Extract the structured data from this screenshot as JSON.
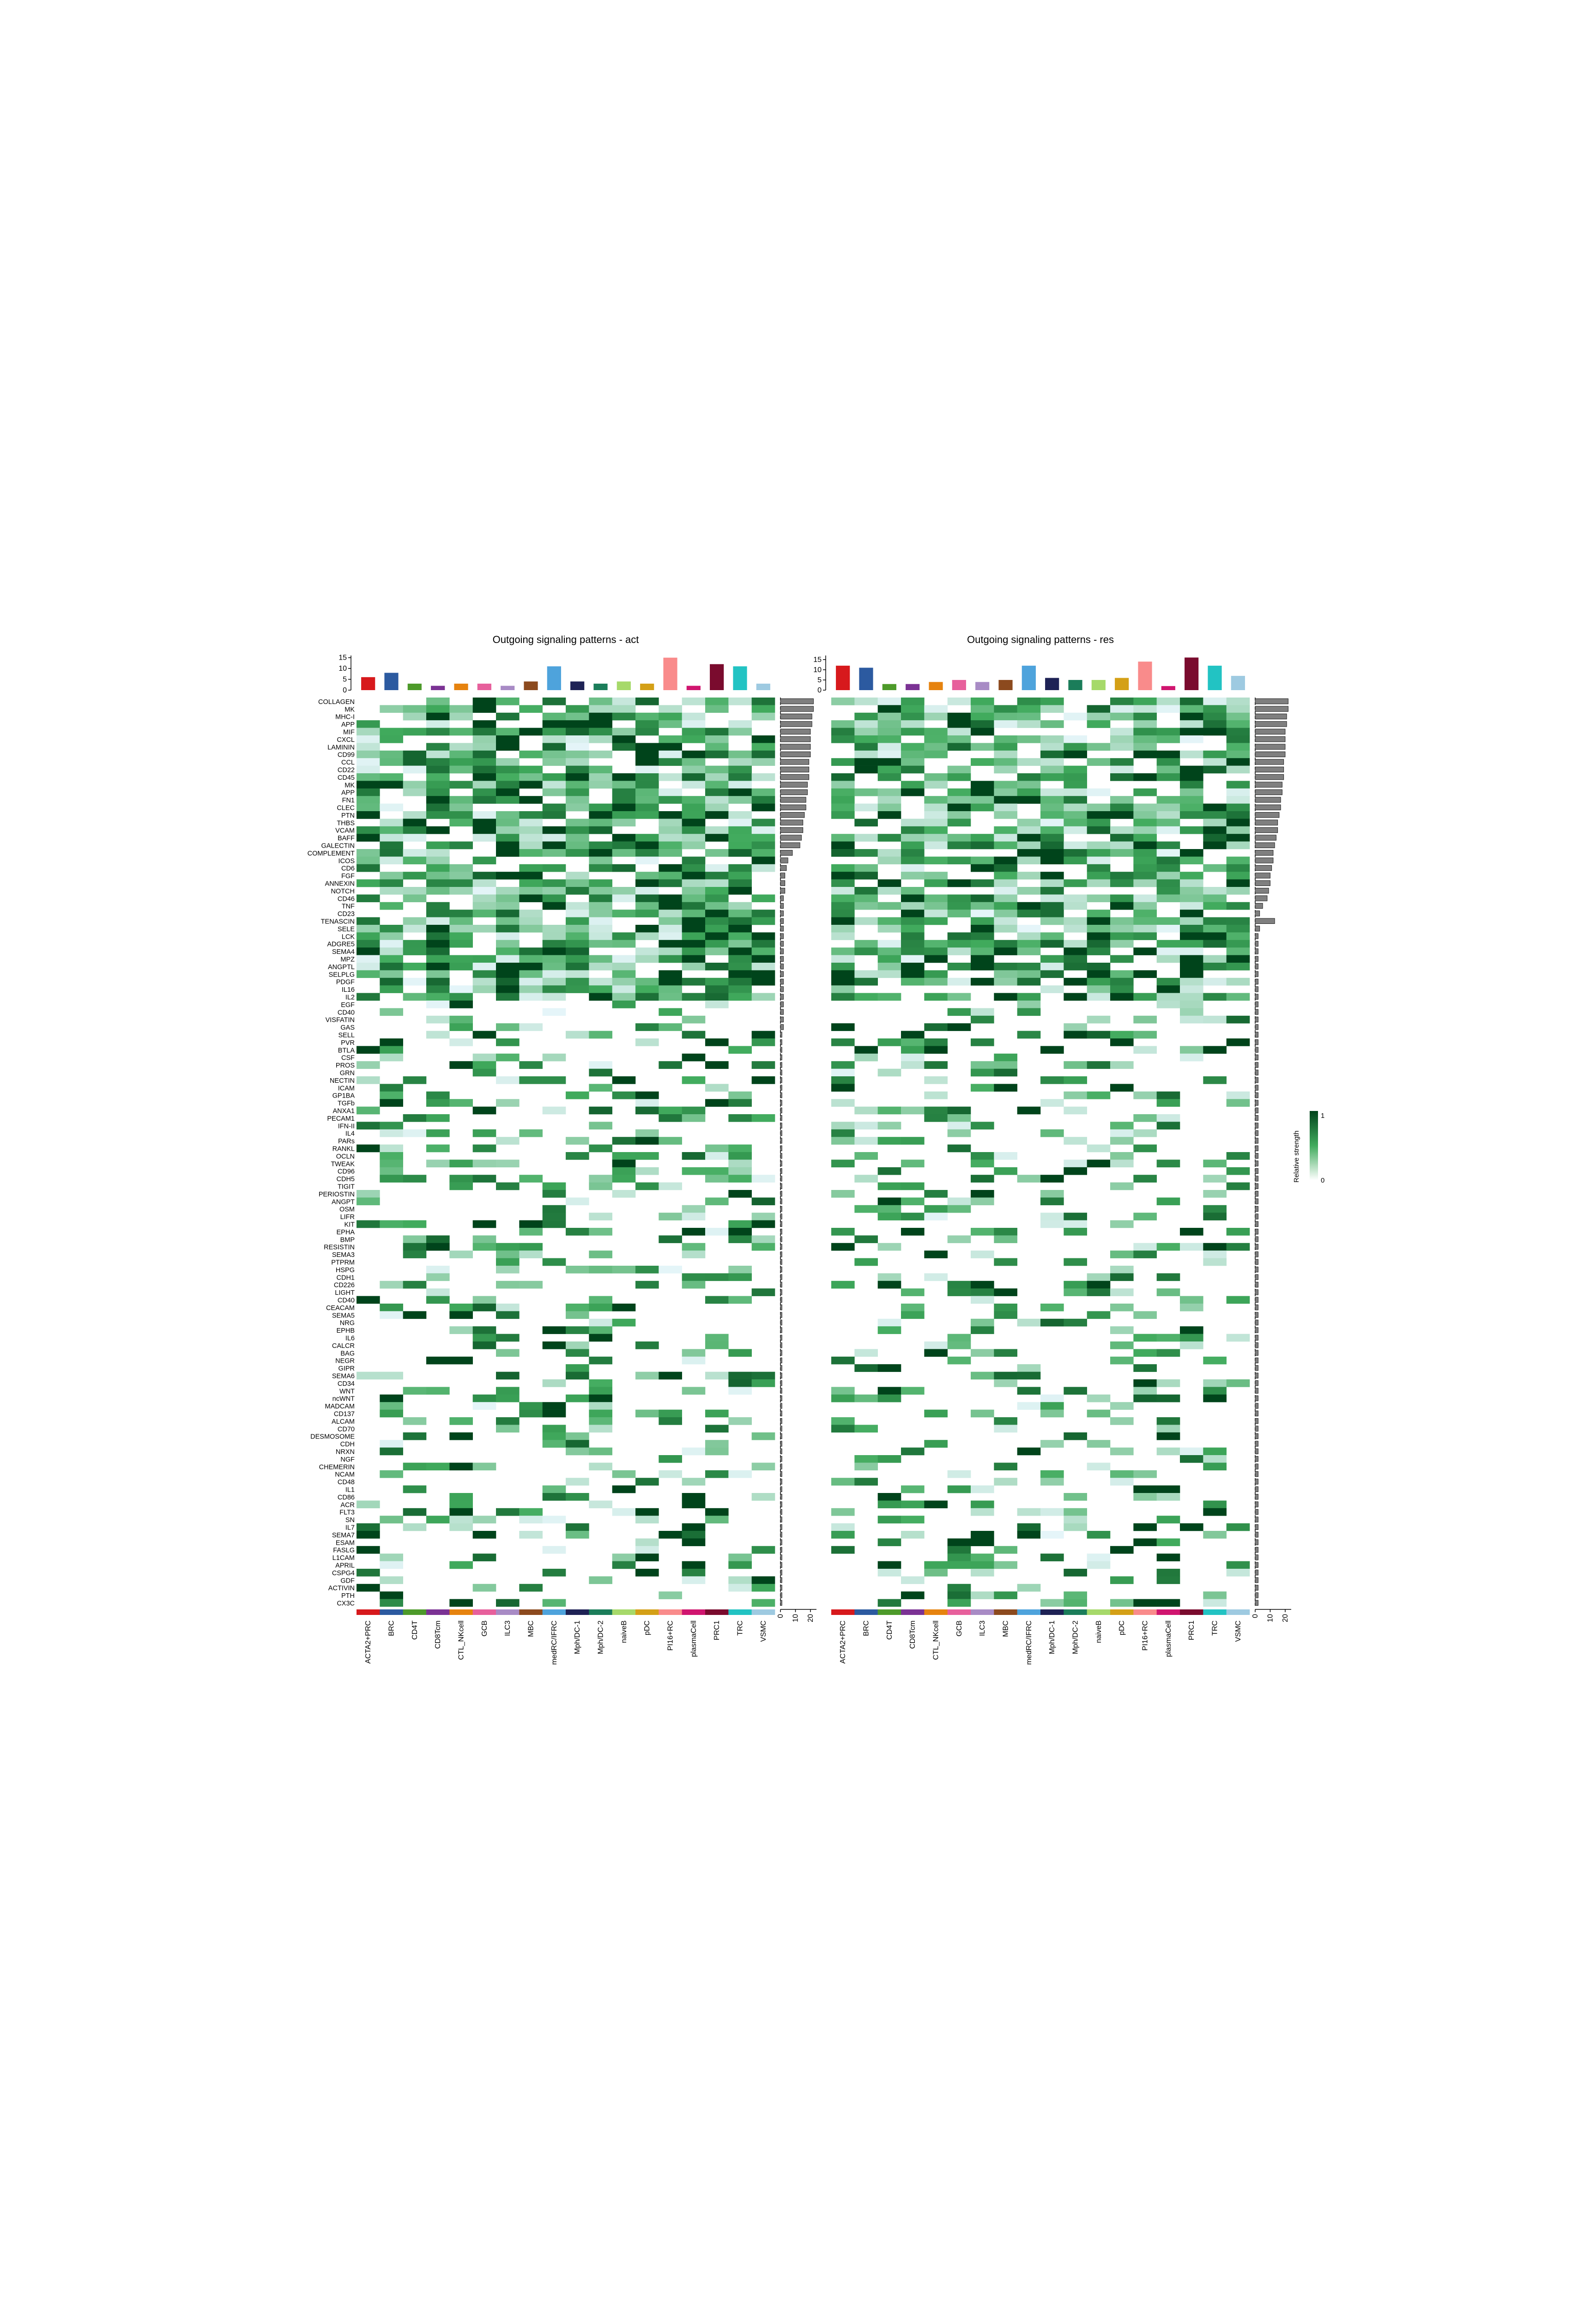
{
  "chart_data": [
    {
      "type": "heatmap",
      "title": "Outgoing signaling patterns - act",
      "columns": [
        "ACTA2+PRC",
        "BRC",
        "CD4T",
        "CD8Tcm",
        "CTL_NKcell",
        "GCB",
        "ILC3",
        "MBC",
        "medRC/IFRC",
        "Mph/DC-1",
        "Mph/DC-2",
        "naiveB",
        "pDC",
        "PI16+RC",
        "plasmaCell",
        "PRC1",
        "TRC",
        "VSMC"
      ],
      "column_totals": [
        6,
        8,
        3,
        2,
        3,
        3,
        2,
        4,
        11,
        4,
        3,
        4,
        3,
        15,
        2,
        12,
        11,
        3
      ],
      "top_axis_ticks": [
        0,
        5,
        10,
        15
      ],
      "top_axis_max": 16,
      "right_axis_ticks": [
        0,
        10,
        20
      ],
      "right_axis_max": 24,
      "visible_row_labels": [
        "COLLAGEN",
        "MK",
        "MHC-I",
        "APP",
        "MIF",
        "CXCL",
        "LAMININ",
        "CD99",
        "CCL",
        "CD22",
        "CD45",
        "MK",
        "APP",
        "FN1",
        "CLEC",
        "PTN",
        "THBS",
        "VCAM",
        "BAFF",
        "GALECTIN",
        "COMPLEMENT",
        "ICOS",
        "CD6",
        "FGF",
        "ANNEXIN",
        "NOTCH",
        "CD46",
        "TNF",
        "CD23",
        "TENASCIN",
        "SELE",
        "LCK",
        "ADGRE5",
        "SEMA4",
        "MPZ",
        "ANGPTL",
        "SELPLG",
        "PDGF",
        "IL16",
        "IL2",
        "EGF",
        "CD40",
        "VISFATIN",
        "GAS",
        "SELL",
        "PVR",
        "BTLA",
        "CSF",
        "PROS",
        "GRN",
        "NECTIN",
        "ICAM",
        "GP1BA",
        "TGFb",
        "ANXA1",
        "PECAM1",
        "IFN-II",
        "IL4",
        "PARs",
        "RANKL",
        "OCLN",
        "TWEAK",
        "CD96",
        "CDH5",
        "TIGIT",
        "PERIOSTIN",
        "ANGPT",
        "OSM",
        "LIFR",
        "KIT",
        "EPHA",
        "BMP",
        "RESISTIN",
        "SEMA3",
        "PTPRM",
        "HSPG",
        "CDH1",
        "CD226",
        "LIGHT",
        "CD40",
        "CEACAM",
        "SEMA5",
        "NRG",
        "EPHB",
        "IL6",
        "CALCR",
        "BAG",
        "NEGR",
        "GIPR",
        "SEMA6",
        "CD34",
        "WNT",
        "ncWNT",
        "MADCAM",
        "CD137",
        "ALCAM",
        "CD70",
        "DESMOSOME",
        "CDH",
        "NRXN",
        "NGF",
        "CHEMERIN",
        "NCAM",
        "CD48",
        "IL1",
        "CD86",
        "ACR",
        "FLT3",
        "SN",
        "IL7",
        "SEMA7",
        "ESAM",
        "FASLG",
        "L1CAM",
        "APRIL",
        "CSPG4",
        "GDF",
        "ACTIVIN",
        "PTH",
        "CX3C"
      ],
      "row_totals": [
        22,
        22,
        21,
        21,
        20,
        20,
        20,
        20,
        19,
        19,
        19,
        18,
        18,
        17,
        17,
        16,
        15,
        15,
        14,
        13,
        8,
        5,
        4,
        3,
        3,
        3,
        2,
        2,
        2,
        2,
        2,
        2,
        2,
        2,
        2,
        2,
        2,
        2,
        2,
        2,
        2,
        2,
        2,
        2,
        1,
        1,
        1,
        1,
        1,
        1,
        1,
        1,
        1,
        1,
        1,
        1,
        1,
        1,
        1,
        1,
        1,
        1,
        1,
        1,
        1,
        1,
        1,
        1,
        1,
        1,
        1,
        1,
        1,
        1,
        1,
        1,
        1,
        1,
        1,
        1,
        1,
        1,
        1,
        1,
        1,
        1,
        1,
        1,
        1,
        1,
        1,
        1,
        1,
        1,
        1,
        1,
        1,
        1,
        1,
        1,
        1,
        1,
        1,
        1,
        1,
        1,
        1,
        1,
        1,
        1,
        1,
        1,
        1,
        1,
        1,
        1,
        1,
        1,
        1,
        1,
        1,
        1,
        1,
        1,
        1,
        1,
        1,
        1,
        1,
        1,
        1,
        1,
        1,
        1
      ]
    },
    {
      "type": "heatmap",
      "title": "Outgoing signaling patterns - res",
      "columns": [
        "ACTA2+PRC",
        "BRC",
        "CD4T",
        "CD8Tcm",
        "CTL_NKcell",
        "GCB",
        "ILC3",
        "MBC",
        "medRC/IFRC",
        "Mph/DC-1",
        "Mph/DC-2",
        "naiveB",
        "pDC",
        "PI16+RC",
        "plasmaCell",
        "PRC1",
        "TRC",
        "VSMC"
      ],
      "column_totals": [
        12,
        11,
        3,
        3,
        4,
        5,
        4,
        5,
        12,
        6,
        5,
        5,
        6,
        14,
        2,
        16,
        12,
        7
      ],
      "top_axis_ticks": [
        0,
        5,
        10,
        15
      ],
      "top_axis_max": 17,
      "right_axis_ticks": [
        0,
        10,
        20
      ],
      "right_axis_max": 24,
      "row_totals": [
        22,
        22,
        21,
        21,
        20,
        20,
        20,
        20,
        19,
        19,
        19,
        18,
        18,
        17,
        17,
        16,
        15,
        15,
        14,
        13,
        12,
        12,
        11,
        10,
        10,
        9,
        8,
        5,
        3,
        13,
        3,
        2,
        2,
        2,
        2,
        2,
        2,
        2,
        2,
        2,
        2,
        2,
        2,
        2,
        2,
        2,
        2,
        2,
        2,
        2,
        2,
        2,
        2,
        2,
        2,
        2,
        2,
        2,
        2,
        2,
        2,
        2,
        2,
        2,
        2,
        2,
        2,
        2,
        2,
        2,
        2,
        2,
        2,
        2,
        2,
        2,
        2,
        2,
        2,
        2,
        2,
        2,
        2,
        2,
        2,
        2,
        2,
        2,
        2,
        2,
        2,
        2,
        2,
        2,
        2,
        2,
        2,
        2,
        2,
        2,
        2,
        2,
        2,
        2,
        2,
        2,
        2,
        2,
        2,
        2,
        2,
        2,
        2,
        2,
        2,
        2,
        2,
        2,
        2,
        2,
        2,
        2,
        2,
        2,
        2,
        2,
        2,
        2,
        2,
        2,
        2,
        2,
        2,
        2,
        2
      ]
    }
  ],
  "legend": {
    "title": "Relative strength",
    "max_label": "1",
    "min_label": "0"
  },
  "colors": {
    "heat_low": "#ffffff",
    "heat_mid": "#41ab5d",
    "heat_high": "#00441b",
    "row_bar": "#7f7f7f",
    "cell_types": [
      "#d7191c",
      "#2c5aa0",
      "#4d9a2a",
      "#7b3294",
      "#e6830f",
      "#e7609c",
      "#a88bc5",
      "#8c4a1e",
      "#4ea3dc",
      "#1e2255",
      "#1b7d5a",
      "#a6d96a",
      "#d4a017",
      "#f98b8b",
      "#d0156f",
      "#7a0b2e",
      "#22c3c3",
      "#9ecae1"
    ]
  }
}
